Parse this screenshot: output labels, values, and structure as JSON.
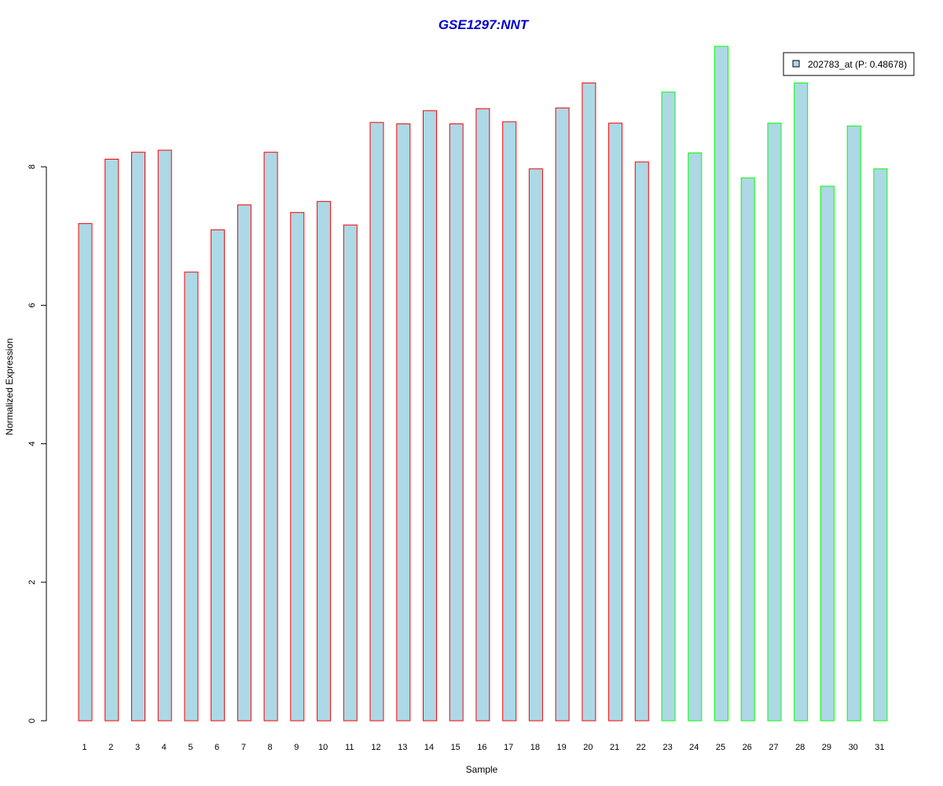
{
  "chart_data": {
    "type": "bar",
    "title": "GSE1297:NNT",
    "xlabel": "Sample",
    "ylabel": "Normalized Expression",
    "ylim": [
      0,
      10
    ],
    "yticks": [
      0,
      2,
      4,
      6,
      8
    ],
    "categories": [
      "1",
      "2",
      "3",
      "4",
      "5",
      "6",
      "7",
      "8",
      "9",
      "10",
      "11",
      "12",
      "13",
      "14",
      "15",
      "16",
      "17",
      "18",
      "19",
      "20",
      "21",
      "22",
      "23",
      "24",
      "25",
      "26",
      "27",
      "28",
      "29",
      "30",
      "31"
    ],
    "series": [
      {
        "name": "202783_at (P: 0.48678)",
        "values": [
          7.18,
          8.11,
          8.21,
          8.24,
          6.48,
          7.09,
          7.45,
          8.21,
          7.34,
          7.5,
          7.16,
          8.64,
          8.62,
          8.81,
          8.62,
          8.84,
          8.65,
          7.97,
          8.85,
          9.21,
          8.63,
          8.07,
          9.08,
          8.2,
          9.74,
          7.84,
          8.63,
          9.21,
          7.72,
          8.59,
          7.97
        ]
      }
    ],
    "groups": [
      {
        "samples": [
          1,
          22
        ],
        "border_color": "#ff0000"
      },
      {
        "samples": [
          23,
          31
        ],
        "border_color": "#00ff00"
      }
    ],
    "bar_fill": "#add8e6",
    "title_color": "#0000cc",
    "legend_position": "top-right",
    "grid": false
  }
}
